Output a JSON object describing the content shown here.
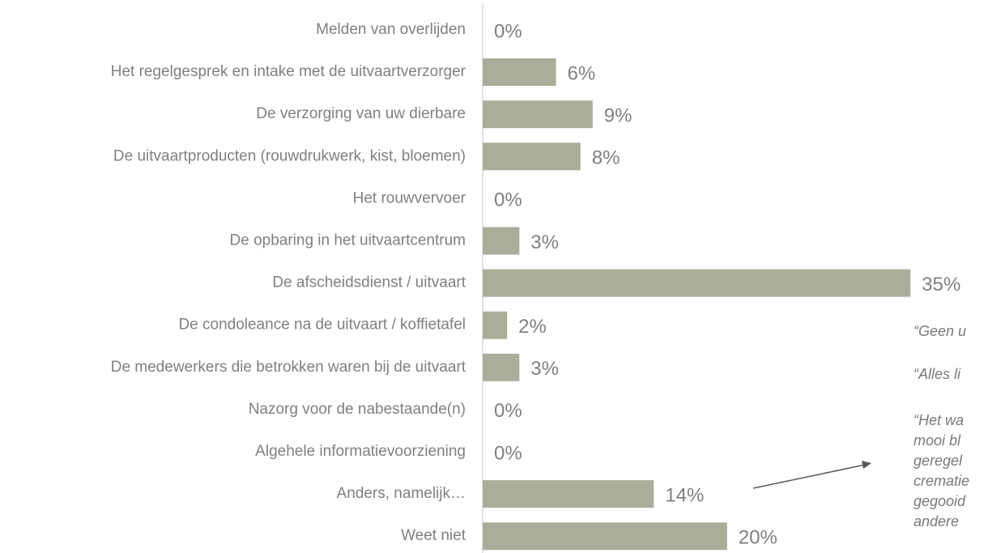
{
  "chart_data": {
    "type": "bar",
    "orientation": "horizontal",
    "categories": [
      "Melden van overlijden",
      "Het regelgesprek en intake met de uitvaartverzorger",
      "De verzorging van uw dierbare",
      "De uitvaartproducten (rouwdrukwerk, kist, bloemen)",
      "Het rouwvervoer",
      "De opbaring in het uitvaartcentrum",
      "De afscheidsdienst / uitvaart",
      "De condoleance na de uitvaart / koffietafel",
      "De medewerkers die betrokken waren bij de uitvaart",
      "Nazorg voor de nabestaande(n)",
      "Algehele informatievoorziening",
      "Anders, namelijk…",
      "Weet niet"
    ],
    "values": [
      0,
      6,
      9,
      8,
      0,
      3,
      35,
      2,
      3,
      0,
      0,
      14,
      20
    ],
    "value_labels": [
      "0%",
      "6%",
      "9%",
      "8%",
      "0%",
      "3%",
      "35%",
      "2%",
      "3%",
      "0%",
      "0%",
      "14%",
      "20%"
    ],
    "color": "#acac9a",
    "annotations": [
      "“Geen u",
      "“Alles li",
      "“Het wa",
      "mooi bl",
      "geregel",
      "crematie",
      "gegooid",
      "andere"
    ]
  }
}
